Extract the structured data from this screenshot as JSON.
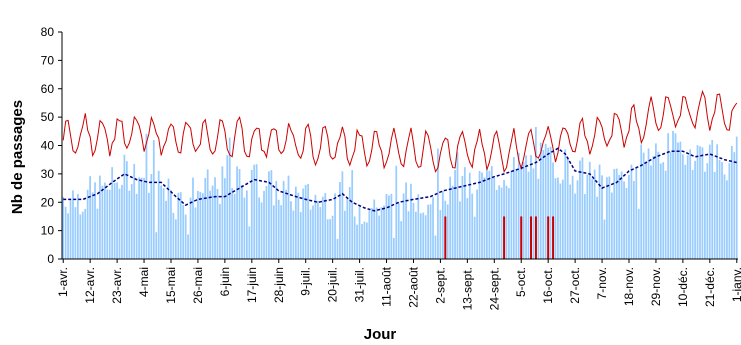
{
  "chart_data": {
    "type": "bar",
    "title": "",
    "xlabel": "Jour",
    "ylabel": "Nb de passages",
    "ylim": [
      0,
      80
    ],
    "yticks": [
      0,
      10,
      20,
      30,
      40,
      50,
      60,
      70,
      80
    ],
    "grid": false,
    "legend": "none",
    "x_start": "1-avr.",
    "x_end": "1-janv.",
    "days": 276,
    "x_tick_labels": [
      "1-avr.",
      "12-avr.",
      "23-avr.",
      "4-mai",
      "15-mai",
      "26-mai",
      "6-juin",
      "17-juin",
      "28-juin",
      "9-juil.",
      "20-juil.",
      "31-juil.",
      "11-août",
      "22-août",
      "2-sept.",
      "13-sept.",
      "24-sept.",
      "5-oct.",
      "16-oct.",
      "27-oct.",
      "7-nov.",
      "18-nov.",
      "29-nov.",
      "10-déc.",
      "21-déc.",
      "1-janv."
    ],
    "x_tick_day_index": [
      0,
      11,
      22,
      33,
      44,
      55,
      66,
      77,
      88,
      99,
      110,
      121,
      132,
      143,
      154,
      165,
      176,
      187,
      198,
      209,
      220,
      231,
      242,
      253,
      264,
      275
    ],
    "series": [
      {
        "kind": "bar",
        "color": "#99ccff",
        "anchors": [
          [
            0,
            22
          ],
          [
            10,
            22
          ],
          [
            20,
            26
          ],
          [
            26,
            31
          ],
          [
            33,
            29
          ],
          [
            40,
            26
          ],
          [
            47,
            20
          ],
          [
            55,
            24
          ],
          [
            66,
            26
          ],
          [
            77,
            28
          ],
          [
            88,
            24
          ],
          [
            99,
            21
          ],
          [
            110,
            21
          ],
          [
            121,
            18
          ],
          [
            132,
            19
          ],
          [
            143,
            21
          ],
          [
            154,
            24
          ],
          [
            165,
            26
          ],
          [
            176,
            29
          ],
          [
            187,
            32
          ],
          [
            198,
            35
          ],
          [
            205,
            33
          ],
          [
            209,
            30
          ],
          [
            220,
            27
          ],
          [
            231,
            31
          ],
          [
            242,
            37
          ],
          [
            253,
            39
          ],
          [
            264,
            37
          ],
          [
            275,
            33
          ]
        ],
        "noise": 7
      },
      {
        "kind": "line",
        "color": "#cc0000",
        "anchors": [
          [
            0,
            42
          ],
          [
            11,
            44
          ],
          [
            22,
            44
          ],
          [
            33,
            44
          ],
          [
            44,
            43
          ],
          [
            55,
            42
          ],
          [
            66,
            43
          ],
          [
            77,
            42
          ],
          [
            88,
            42
          ],
          [
            99,
            40
          ],
          [
            110,
            40
          ],
          [
            121,
            39
          ],
          [
            132,
            39
          ],
          [
            143,
            39
          ],
          [
            154,
            38
          ],
          [
            165,
            38
          ],
          [
            176,
            38
          ],
          [
            187,
            39
          ],
          [
            198,
            41
          ],
          [
            209,
            42
          ],
          [
            220,
            44
          ],
          [
            231,
            47
          ],
          [
            242,
            50
          ],
          [
            253,
            52
          ],
          [
            264,
            53
          ],
          [
            275,
            50
          ]
        ],
        "weekly_amplitude": 6
      },
      {
        "kind": "line",
        "style": "dashed",
        "color": "#000080",
        "anchors": [
          [
            0,
            21
          ],
          [
            8,
            21
          ],
          [
            14,
            23
          ],
          [
            20,
            27
          ],
          [
            25,
            30
          ],
          [
            30,
            28
          ],
          [
            35,
            27
          ],
          [
            40,
            27
          ],
          [
            46,
            22
          ],
          [
            50,
            19
          ],
          [
            55,
            21
          ],
          [
            62,
            22
          ],
          [
            66,
            22
          ],
          [
            72,
            25
          ],
          [
            78,
            28
          ],
          [
            84,
            27
          ],
          [
            88,
            24
          ],
          [
            95,
            22
          ],
          [
            99,
            21
          ],
          [
            104,
            20
          ],
          [
            110,
            21
          ],
          [
            114,
            23
          ],
          [
            118,
            20
          ],
          [
            123,
            18
          ],
          [
            127,
            17
          ],
          [
            132,
            18
          ],
          [
            137,
            20
          ],
          [
            143,
            21
          ],
          [
            150,
            22
          ],
          [
            155,
            24
          ],
          [
            160,
            25
          ],
          [
            165,
            26
          ],
          [
            170,
            27
          ],
          [
            176,
            29
          ],
          [
            180,
            30
          ],
          [
            187,
            32
          ],
          [
            193,
            34
          ],
          [
            198,
            37
          ],
          [
            202,
            39
          ],
          [
            205,
            37
          ],
          [
            209,
            31
          ],
          [
            215,
            30
          ],
          [
            220,
            25
          ],
          [
            226,
            27
          ],
          [
            231,
            31
          ],
          [
            236,
            33
          ],
          [
            242,
            36
          ],
          [
            248,
            38
          ],
          [
            253,
            38
          ],
          [
            258,
            36
          ],
          [
            264,
            37
          ],
          [
            270,
            35
          ],
          [
            275,
            34
          ]
        ]
      },
      {
        "kind": "markers",
        "color": "#cc0000",
        "days": [
          156,
          180,
          187,
          191,
          193,
          198,
          200
        ],
        "value": 15
      }
    ]
  }
}
